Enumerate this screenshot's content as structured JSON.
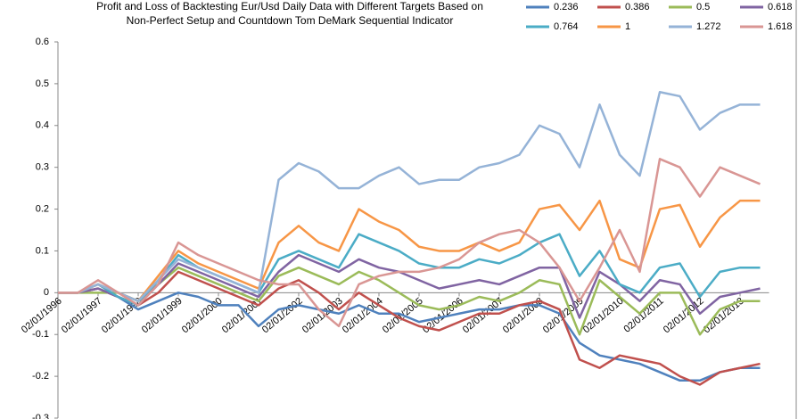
{
  "chart_data": {
    "type": "line",
    "title": [
      "Profit and Loss of Backtesting Eur/Usd Daily  Data with Different Targets Based on",
      "Non-Perfect Setup and Countdown Tom DeMark Sequential Indicator"
    ],
    "categories": [
      "02/01/1996",
      null,
      "02/01/1997",
      null,
      "02/01/1998",
      null,
      "02/01/1999",
      null,
      "02/01/2000",
      null,
      "02/01/2001",
      null,
      "02/01/2002",
      null,
      "02/01/2003",
      null,
      "02/01/2004",
      null,
      "02/01/2005",
      null,
      "02/01/2006",
      null,
      "02/01/2007",
      null,
      "02/01/2008",
      null,
      "02/01/2009",
      null,
      "02/01/2010",
      null,
      "02/01/2011",
      null,
      "02/01/2012",
      null,
      "02/01/2013",
      null
    ],
    "ylim": [
      -0.3,
      0.6
    ],
    "yticks": [
      -0.3,
      -0.2,
      -0.1,
      0,
      0.1,
      0.2,
      0.3,
      0.4,
      0.5,
      0.6
    ],
    "grid": false,
    "legend": "top-right",
    "series": [
      {
        "name": "0.236",
        "color": "#4f81bd",
        "values": [
          0,
          0,
          0.01,
          -0.01,
          -0.04,
          -0.02,
          0.0,
          -0.01,
          -0.03,
          -0.03,
          -0.08,
          -0.04,
          -0.03,
          -0.04,
          -0.05,
          -0.03,
          -0.05,
          -0.05,
          -0.07,
          -0.06,
          -0.05,
          -0.04,
          -0.04,
          -0.03,
          -0.03,
          -0.05,
          -0.12,
          -0.15,
          -0.16,
          -0.17,
          -0.19,
          -0.21,
          -0.21,
          -0.19,
          -0.18,
          -0.18
        ]
      },
      {
        "name": "0.386",
        "color": "#c0504d",
        "values": [
          0,
          0,
          0.01,
          -0.01,
          -0.03,
          0.0,
          0.05,
          0.03,
          0.01,
          -0.01,
          -0.03,
          0.01,
          0.03,
          0.0,
          -0.04,
          0.0,
          -0.03,
          -0.06,
          -0.08,
          -0.09,
          -0.07,
          -0.05,
          -0.05,
          -0.03,
          -0.02,
          -0.04,
          -0.16,
          -0.18,
          -0.15,
          -0.16,
          -0.17,
          -0.2,
          -0.22,
          -0.19,
          -0.18,
          -0.17
        ]
      },
      {
        "name": "0.5",
        "color": "#9bbb59",
        "values": [
          0,
          0,
          0.0,
          0.0,
          -0.02,
          0.02,
          0.06,
          0.04,
          0.02,
          0.0,
          -0.02,
          0.04,
          0.06,
          0.04,
          0.02,
          0.05,
          0.03,
          0.0,
          -0.03,
          -0.04,
          -0.03,
          -0.01,
          -0.02,
          0.0,
          0.03,
          0.02,
          -0.1,
          0.03,
          -0.01,
          -0.05,
          0.0,
          0.0,
          -0.1,
          -0.04,
          -0.02,
          -0.02
        ]
      },
      {
        "name": "0.618",
        "color": "#8064a2",
        "values": [
          0,
          0,
          0.01,
          -0.01,
          -0.03,
          0.02,
          0.07,
          0.05,
          0.03,
          0.01,
          -0.01,
          0.05,
          0.09,
          0.07,
          0.05,
          0.08,
          0.06,
          0.05,
          0.03,
          0.01,
          0.02,
          0.03,
          0.02,
          0.04,
          0.06,
          0.06,
          -0.06,
          0.05,
          0.02,
          -0.02,
          0.03,
          0.02,
          -0.05,
          -0.01,
          0.0,
          0.01
        ]
      },
      {
        "name": "0.764",
        "color": "#4bacc6",
        "values": [
          0,
          0,
          0.02,
          -0.01,
          -0.03,
          0.03,
          0.09,
          0.06,
          0.04,
          0.02,
          0.0,
          0.08,
          0.1,
          0.08,
          0.06,
          0.14,
          0.12,
          0.1,
          0.07,
          0.06,
          0.06,
          0.08,
          0.07,
          0.09,
          0.12,
          0.14,
          0.04,
          0.1,
          0.02,
          0.0,
          0.06,
          0.07,
          -0.01,
          0.05,
          0.06,
          0.06
        ]
      },
      {
        "name": "1",
        "color": "#f79646",
        "values": [
          0,
          0,
          0.02,
          0.0,
          -0.02,
          0.04,
          0.1,
          0.07,
          0.05,
          0.03,
          0.01,
          0.12,
          0.16,
          0.12,
          0.1,
          0.2,
          0.17,
          0.15,
          0.11,
          0.1,
          0.1,
          0.12,
          0.1,
          0.12,
          0.2,
          0.21,
          0.15,
          0.22,
          0.08,
          0.06,
          0.2,
          0.21,
          0.11,
          0.18,
          0.22,
          0.22
        ]
      },
      {
        "name": "1.272",
        "color": "#95b3d7",
        "values": [
          0,
          0,
          0.02,
          0.0,
          -0.02,
          0.03,
          0.08,
          0.06,
          0.04,
          0.02,
          0.0,
          0.27,
          0.31,
          0.29,
          0.25,
          0.25,
          0.28,
          0.3,
          0.26,
          0.27,
          0.27,
          0.3,
          0.31,
          0.33,
          0.4,
          0.38,
          0.3,
          0.45,
          0.33,
          0.28,
          0.48,
          0.47,
          0.39,
          0.43,
          0.45,
          0.45
        ]
      },
      {
        "name": "1.618",
        "color": "#d99694",
        "values": [
          0,
          0,
          0.03,
          0.0,
          -0.03,
          0.02,
          0.12,
          0.09,
          0.07,
          0.05,
          0.03,
          0.02,
          0.02,
          -0.04,
          -0.08,
          0.02,
          0.04,
          0.05,
          0.05,
          0.06,
          0.08,
          0.12,
          0.14,
          0.15,
          0.12,
          0.06,
          -0.02,
          0.06,
          0.15,
          0.05,
          0.32,
          0.3,
          0.23,
          0.3,
          0.28,
          0.26
        ]
      }
    ]
  }
}
